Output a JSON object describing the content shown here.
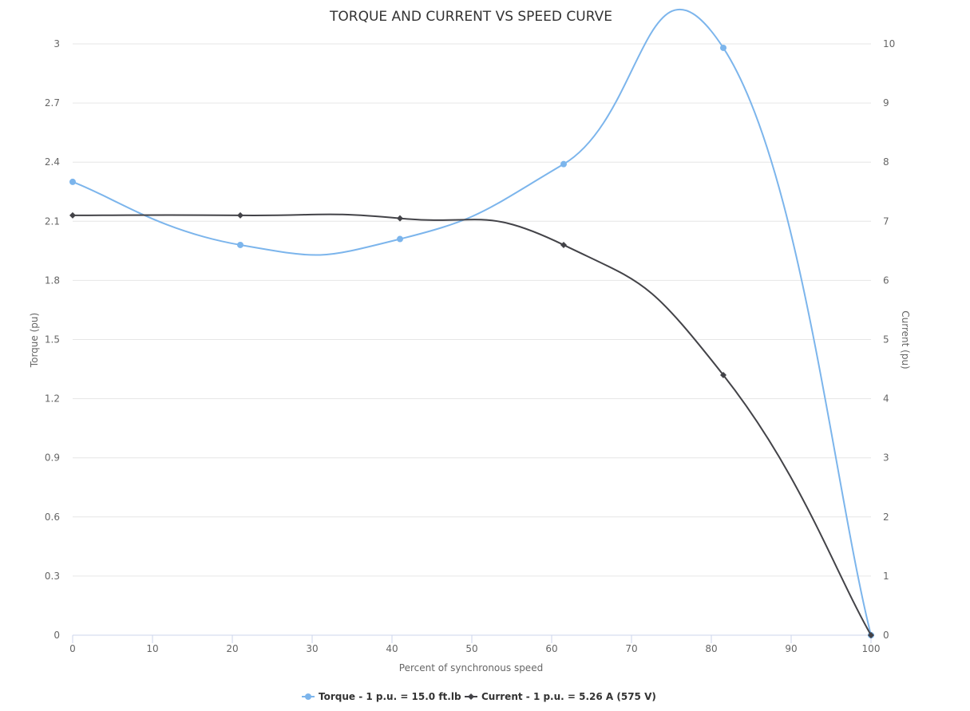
{
  "chart_data": {
    "type": "line",
    "title": "TORQUE AND CURRENT VS SPEED CURVE",
    "xlabel": "Percent of synchronous speed",
    "xlim": [
      0,
      100
    ],
    "x_ticks": [
      "0",
      "10",
      "20",
      "30",
      "40",
      "50",
      "60",
      "70",
      "80",
      "90",
      "100"
    ],
    "y_left": {
      "label": "Torque (pu)",
      "ylim": [
        0,
        3
      ],
      "ticks": [
        "0",
        "0.3",
        "0.6",
        "0.9",
        "1.2",
        "1.5",
        "1.8",
        "2.1",
        "2.4",
        "2.7",
        "3"
      ]
    },
    "y_right": {
      "label": "Current (pu)",
      "ylim": [
        0,
        10
      ],
      "ticks": [
        "0",
        "1",
        "2",
        "3",
        "4",
        "5",
        "6",
        "7",
        "8",
        "9",
        "10"
      ]
    },
    "grid": true,
    "legend_position": "bottom-center",
    "series": [
      {
        "name": "Torque - 1 p.u. = 15.0 ft.lb",
        "axis": "left",
        "color": "#7cb5ec",
        "marker": "circle",
        "x": [
          0,
          21,
          41,
          61.5,
          81.5,
          100
        ],
        "y": [
          2.3,
          1.98,
          2.01,
          2.39,
          2.98,
          0
        ]
      },
      {
        "name": "Current - 1 p.u. = 5.26 A (575 V)",
        "axis": "right",
        "color": "#434348",
        "marker": "diamond",
        "x": [
          0,
          21,
          41,
          61.5,
          81.5,
          100
        ],
        "y": [
          7.1,
          7.1,
          7.05,
          6.6,
          4.4,
          0
        ]
      }
    ]
  }
}
